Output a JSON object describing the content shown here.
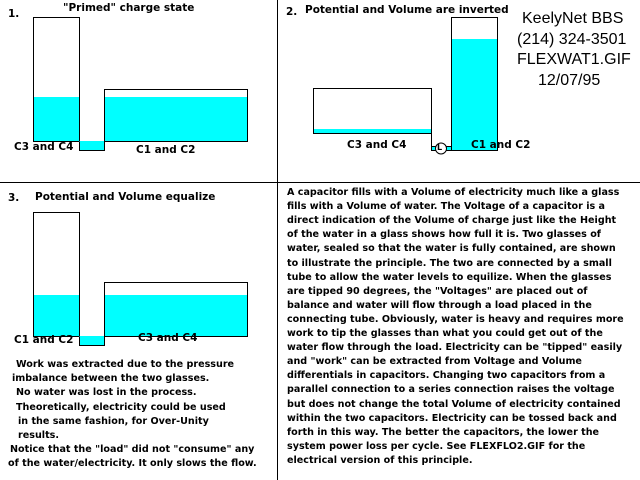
{
  "panel1": {
    "number": "1.",
    "title": "\"Primed\" charge state",
    "label_left": "C3 and C4",
    "label_right": "C1 and C2"
  },
  "panel2": {
    "number": "2.",
    "title": "Potential and Volume are inverted",
    "label_left": "C3 and C4",
    "label_right": "C1 and C2",
    "load_symbol": "L"
  },
  "panel3": {
    "number": "3.",
    "title": "Potential and Volume equalize",
    "label_left": "C1 and C2",
    "label_right": "C3 and C4"
  },
  "header_info": [
    "KeelyNet BBS",
    "(214) 324-3501",
    "FLEXWAT1.GIF",
    "12/07/95"
  ],
  "notes_left": [
    "Work was extracted due to the pressure",
    " imbalance between the two glasses.",
    "No water was lost in the process.",
    "Theoretically, electricity could be used",
    "in the same fashion, for Over-Unity",
    "results.",
    "Notice that the \"load\" did not \"consume\" any",
    "of the water/electricity. It only slows the flow."
  ],
  "explanation": [
    "A capacitor fills with a Volume of electricity much like a glass",
    "fills with a Volume of water. The Voltage of a capacitor is a",
    "direct indication of the Volume of charge just like the Height",
    "of the water in a glass shows how full it is. Two glasses of",
    "water, sealed so that the water is fully contained, are shown",
    "to illustrate the principle. The two are connected by a small",
    "tube to allow the water levels to equilize. When the glasses",
    "are tipped 90 degrees, the \"Voltages\" are placed out of",
    "balance and water will flow through a load placed in the",
    "connecting tube. Obviously, water is heavy and requires more",
    "work to tip the glasses than what you could get out of the",
    "water flow through the load. Electricity can be \"tipped\" easily",
    "and \"work\" can be extracted from Voltage and Volume",
    "differentials in capacitors. Changing two capacitors from a",
    "parallel connection to a series connection raises the voltage",
    "but does not change the total Volume of electricity contained",
    "within the two capacitors. Electricity can be tossed back and",
    "forth in this way. The better the capacitors, the lower the",
    " system power loss per cycle.  See FLEXFLO2.GIF for the",
    "electrical version of this principle."
  ],
  "colors": {
    "water": "#00FFFF",
    "line": "#000000",
    "background": "#FFFFFF"
  }
}
